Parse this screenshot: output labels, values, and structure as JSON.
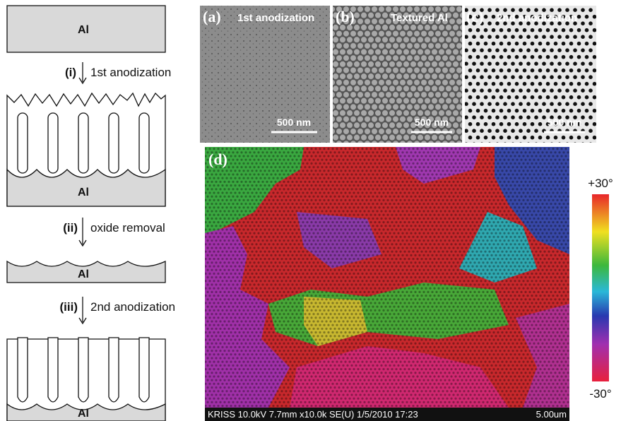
{
  "schematic": {
    "blocks": [
      "Al",
      "Al",
      "Al",
      "Al"
    ],
    "steps": [
      {
        "numeral": "(i)",
        "text": "1st anodization"
      },
      {
        "numeral": "(ii)",
        "text": "oxide removal"
      },
      {
        "numeral": "(iii)",
        "text": "2nd anodization"
      }
    ]
  },
  "panels": [
    {
      "label": "(a)",
      "caption": "1st anodization",
      "scale_bar": "500 nm"
    },
    {
      "label": "(b)",
      "caption": "Textured Al",
      "scale_bar": "500 nm"
    },
    {
      "label": "(c)",
      "caption": "2nd anodization",
      "scale_bar": "500 nm"
    }
  ],
  "map": {
    "label": "(d)",
    "footer": "KRISS 10.0kV 7.7mm x10.0k SE(U) 1/5/2010 17:23",
    "scale": "5.00um",
    "colorbar": {
      "top": "+30°",
      "bottom": "-30°"
    }
  }
}
